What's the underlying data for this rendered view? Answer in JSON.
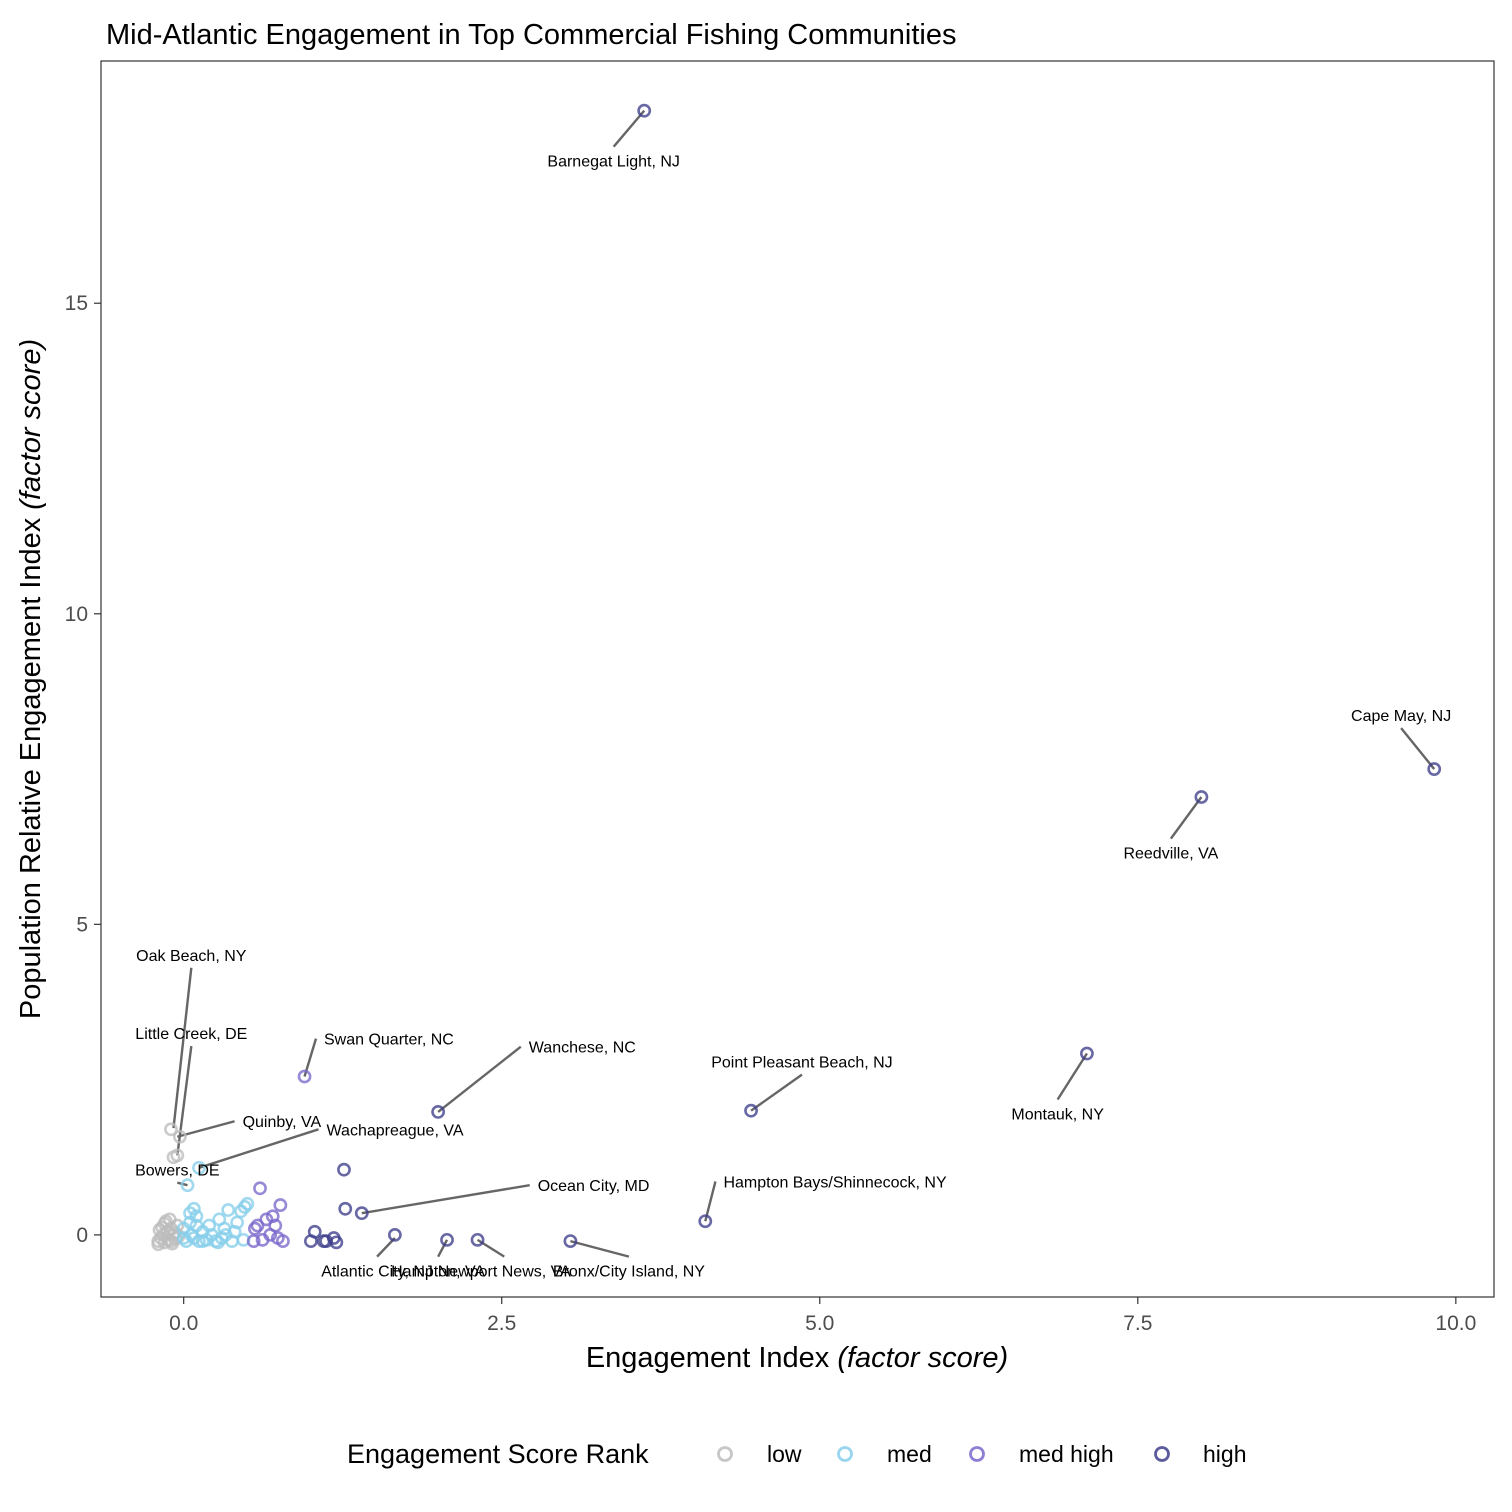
{
  "chart_data": {
    "type": "scatter",
    "title": "Mid-Atlantic Engagement in Top Commercial Fishing Communities",
    "xlabel": "Engagement Index",
    "xlabel_italic": "(factor score)",
    "ylabel": "Population Relative Engagement Index",
    "ylabel_italic": "(factor score)",
    "xlim": [
      -0.65,
      10.3
    ],
    "ylim": [
      -1.0,
      18.9
    ],
    "xticks": [
      0.0,
      2.5,
      5.0,
      7.5,
      10.0
    ],
    "xtick_labels": [
      "0.0",
      "2.5",
      "5.0",
      "7.5",
      "10.0"
    ],
    "yticks": [
      0,
      5,
      10,
      15
    ],
    "ytick_labels": [
      "0",
      "5",
      "10",
      "15"
    ],
    "grid": false,
    "legend": {
      "title": "Engagement Score Rank",
      "position": "bottom",
      "items": [
        {
          "key": "low",
          "label": "low",
          "color": "#bdbdbd"
        },
        {
          "key": "med",
          "label": "med",
          "color": "#87ceeb"
        },
        {
          "key": "medhigh",
          "label": "med high",
          "color": "#7b68cc"
        },
        {
          "key": "high",
          "label": "high",
          "color": "#3e3e8c"
        }
      ]
    },
    "series": [
      {
        "name": "low",
        "key": "low",
        "points": [
          [
            -0.2,
            -0.1
          ],
          [
            -0.18,
            -0.05
          ],
          [
            -0.16,
            0.0
          ],
          [
            -0.15,
            -0.12
          ],
          [
            -0.13,
            0.05
          ],
          [
            -0.12,
            -0.08
          ],
          [
            -0.1,
            0.1
          ],
          [
            -0.1,
            -0.1
          ],
          [
            -0.08,
            0.0
          ],
          [
            -0.06,
            -0.06
          ],
          [
            -0.05,
            0.15
          ],
          [
            -0.14,
            0.22
          ],
          [
            -0.11,
            0.25
          ],
          [
            -0.17,
            0.12
          ],
          [
            -0.09,
            -0.14
          ],
          [
            -0.04,
            -0.02
          ],
          [
            -0.19,
            0.08
          ],
          [
            -0.07,
            0.04
          ],
          [
            -0.1,
            1.7
          ],
          [
            -0.03,
            1.58
          ],
          [
            -0.05,
            1.28
          ],
          [
            -0.08,
            1.25
          ],
          [
            -0.2,
            -0.15
          ],
          [
            -0.15,
            0.18
          ]
        ]
      },
      {
        "name": "med",
        "key": "med",
        "points": [
          [
            0.0,
            0.1
          ],
          [
            0.02,
            -0.1
          ],
          [
            0.05,
            0.2
          ],
          [
            0.08,
            -0.05
          ],
          [
            0.1,
            0.3
          ],
          [
            0.12,
            -0.1
          ],
          [
            0.15,
            0.05
          ],
          [
            0.18,
            -0.08
          ],
          [
            0.2,
            0.15
          ],
          [
            0.22,
            0.0
          ],
          [
            0.25,
            -0.1
          ],
          [
            0.28,
            0.25
          ],
          [
            0.3,
            -0.05
          ],
          [
            0.32,
            0.1
          ],
          [
            0.35,
            0.4
          ],
          [
            0.38,
            -0.1
          ],
          [
            0.4,
            0.05
          ],
          [
            0.42,
            0.2
          ],
          [
            0.45,
            0.38
          ],
          [
            0.48,
            0.45
          ],
          [
            0.5,
            0.5
          ],
          [
            0.05,
            0.35
          ],
          [
            0.08,
            0.42
          ],
          [
            0.03,
            0.8
          ],
          [
            0.12,
            1.08
          ],
          [
            0.15,
            -0.1
          ],
          [
            0.27,
            -0.12
          ],
          [
            0.33,
            0.0
          ],
          [
            0.0,
            -0.05
          ],
          [
            0.06,
            0.0
          ],
          [
            0.1,
            0.15
          ],
          [
            0.47,
            -0.08
          ]
        ]
      },
      {
        "name": "med high",
        "key": "medhigh",
        "points": [
          [
            0.55,
            -0.1
          ],
          [
            0.58,
            0.15
          ],
          [
            0.6,
            0.75
          ],
          [
            0.62,
            -0.08
          ],
          [
            0.65,
            0.25
          ],
          [
            0.68,
            0.0
          ],
          [
            0.7,
            0.3
          ],
          [
            0.72,
            0.15
          ],
          [
            0.74,
            -0.05
          ],
          [
            0.76,
            0.48
          ],
          [
            0.78,
            -0.1
          ],
          [
            0.95,
            2.55
          ],
          [
            0.56,
            0.1
          ]
        ]
      },
      {
        "name": "high",
        "key": "high",
        "points": [
          [
            1.0,
            -0.1
          ],
          [
            1.03,
            0.05
          ],
          [
            1.1,
            -0.1
          ],
          [
            1.18,
            -0.05
          ],
          [
            1.2,
            -0.12
          ],
          [
            1.26,
            1.05
          ],
          [
            1.27,
            0.42
          ],
          [
            1.4,
            0.35
          ],
          [
            1.66,
            0.0
          ],
          [
            2.07,
            -0.08
          ],
          [
            2.31,
            -0.08
          ],
          [
            3.04,
            -0.1
          ],
          [
            2.0,
            1.98
          ],
          [
            3.62,
            18.1
          ],
          [
            4.1,
            0.22
          ],
          [
            4.46,
            2.0
          ],
          [
            7.1,
            2.92
          ],
          [
            8.0,
            7.05
          ],
          [
            9.83,
            7.5
          ],
          [
            1.12,
            -0.1
          ]
        ]
      }
    ],
    "labels": [
      {
        "text": "Barnegat Light, NJ",
        "point": [
          3.62,
          18.1
        ],
        "anchor": [
          3.38,
          17.52
        ],
        "align": "middle"
      },
      {
        "text": "Cape May, NJ",
        "point": [
          9.83,
          7.5
        ],
        "anchor": [
          9.57,
          8.16
        ],
        "align": "middle"
      },
      {
        "text": "Reedville, VA",
        "point": [
          8.0,
          7.05
        ],
        "anchor": [
          7.76,
          6.38
        ],
        "align": "middle"
      },
      {
        "text": "Montauk, NY",
        "point": [
          7.1,
          2.92
        ],
        "anchor": [
          6.87,
          2.18
        ],
        "align": "middle"
      },
      {
        "text": "Point Pleasant Beach, NJ",
        "point": [
          4.46,
          2.0
        ],
        "anchor": [
          4.86,
          2.58
        ],
        "align": "middle"
      },
      {
        "text": "Hampton Bays/Shinnecock, NY",
        "point": [
          4.1,
          0.22
        ],
        "anchor": [
          4.18,
          0.86
        ],
        "align": "start"
      },
      {
        "text": "Wanchese, NC",
        "point": [
          2.0,
          1.98
        ],
        "anchor": [
          2.65,
          3.03
        ],
        "align": "start"
      },
      {
        "text": "Ocean City, MD",
        "point": [
          1.4,
          0.35
        ],
        "anchor": [
          2.72,
          0.8
        ],
        "align": "start"
      },
      {
        "text": "Swan Quarter, NC",
        "point": [
          0.95,
          2.55
        ],
        "anchor": [
          1.04,
          3.16
        ],
        "align": "start"
      },
      {
        "text": "Wachapreague, VA",
        "point": [
          0.12,
          1.08
        ],
        "anchor": [
          1.06,
          1.7
        ],
        "align": "start"
      },
      {
        "text": "Quinby, VA",
        "point": [
          -0.05,
          1.58
        ],
        "anchor": [
          0.4,
          1.83
        ],
        "align": "start"
      },
      {
        "text": "Oak Beach, NY",
        "point": [
          -0.08,
          1.72
        ],
        "anchor": [
          0.06,
          4.3
        ],
        "align": "middle"
      },
      {
        "text": "Little Creek, DE",
        "point": [
          -0.05,
          1.28
        ],
        "anchor": [
          0.06,
          3.04
        ],
        "align": "middle"
      },
      {
        "text": "Bowers, DE",
        "point": [
          0.03,
          0.8
        ],
        "anchor": [
          -0.05,
          0.84
        ],
        "align": "middle"
      },
      {
        "text": "Atlantic City, NJ",
        "point": [
          1.66,
          -0.05
        ],
        "anchor": [
          1.52,
          -0.35
        ],
        "align": "middle"
      },
      {
        "text": "Hampton, VA",
        "point": [
          2.07,
          -0.08
        ],
        "anchor": [
          2.0,
          -0.35
        ],
        "align": "middle"
      },
      {
        "text": "Newport News, VA",
        "point": [
          2.31,
          -0.08
        ],
        "anchor": [
          2.52,
          -0.35
        ],
        "align": "middle"
      },
      {
        "text": "Bronx/City Island, NY",
        "point": [
          3.04,
          -0.1
        ],
        "anchor": [
          3.5,
          -0.35
        ],
        "align": "middle"
      }
    ]
  }
}
